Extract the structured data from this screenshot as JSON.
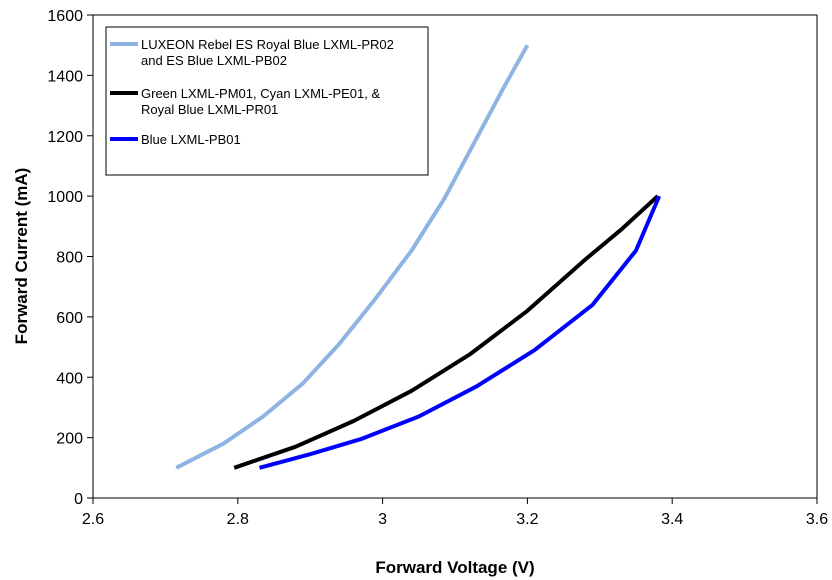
{
  "chart_data": {
    "type": "line",
    "title": "",
    "xlabel": "Forward Voltage (V)",
    "ylabel": "Forward Current (mA)",
    "xlim": [
      2.6,
      3.6
    ],
    "ylim": [
      0,
      1600
    ],
    "xticks": [
      "2.6",
      "2.8",
      "3",
      "3.2",
      "3.4",
      "3.6"
    ],
    "yticks": [
      "0",
      "200",
      "400",
      "600",
      "800",
      "1000",
      "1200",
      "1400",
      "1600"
    ],
    "grid": false,
    "legend_position": "top-left",
    "series": [
      {
        "name": "LUXEON Rebel ES Royal Blue LXML-PR02 and ES Blue LXML-PB02",
        "legend_lines": [
          "LUXEON Rebel ES Royal Blue LXML-PR02",
          "and ES Blue LXML-PB02"
        ],
        "color": "#8fb4e3",
        "x": [
          2.715,
          2.78,
          2.835,
          2.89,
          2.94,
          2.99,
          3.04,
          3.085,
          3.125,
          3.165,
          3.2
        ],
        "y": [
          100,
          180,
          270,
          380,
          510,
          660,
          820,
          990,
          1170,
          1350,
          1500
        ]
      },
      {
        "name": "Green LXML-PM01, Cyan LXML-PE01, & Royal Blue LXML-PR01",
        "legend_lines": [
          "Green LXML-PM01, Cyan LXML-PE01, &",
          "Royal Blue LXML-PR01"
        ],
        "color": "#000000",
        "x": [
          2.795,
          2.88,
          2.96,
          3.04,
          3.12,
          3.2,
          3.28,
          3.33,
          3.38
        ],
        "y": [
          100,
          170,
          255,
          355,
          475,
          620,
          790,
          890,
          1000
        ]
      },
      {
        "name": "Blue LXML-PB01",
        "legend_lines": [
          "Blue LXML-PB01"
        ],
        "color": "#0000ff",
        "x": [
          2.83,
          2.9,
          2.97,
          3.05,
          3.13,
          3.21,
          3.29,
          3.35,
          3.382
        ],
        "y": [
          100,
          145,
          195,
          270,
          370,
          490,
          640,
          820,
          1000
        ]
      }
    ]
  }
}
